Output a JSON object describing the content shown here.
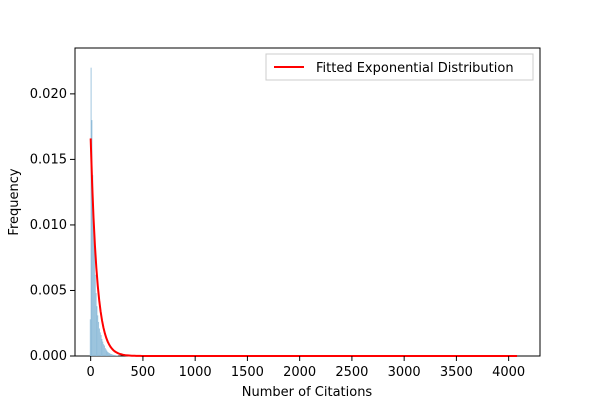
{
  "chart_data": {
    "type": "bar",
    "title": "",
    "xlabel": "Number of Citations",
    "ylabel": "Frequency",
    "xlim": [
      -150,
      4300
    ],
    "ylim": [
      0,
      0.0235
    ],
    "xticks": [
      0,
      500,
      1000,
      1500,
      2000,
      2500,
      3000,
      3500,
      4000
    ],
    "xtick_labels": [
      "0",
      "500",
      "1000",
      "1500",
      "2000",
      "2500",
      "3000",
      "3500",
      "4000"
    ],
    "yticks": [
      0,
      0.005,
      0.01,
      0.015,
      0.02
    ],
    "ytick_labels": [
      "0.000",
      "0.005",
      "0.010",
      "0.015",
      "0.020"
    ],
    "grid": false,
    "legend_position": "top-right",
    "histogram": {
      "series_color": "#8fbcd9",
      "bin_width": 8,
      "bins": [
        {
          "x": -8,
          "y": 0.0028
        },
        {
          "x": 0,
          "y": 0.022
        },
        {
          "x": 8,
          "y": 0.018
        },
        {
          "x": 16,
          "y": 0.0138
        },
        {
          "x": 24,
          "y": 0.0112
        },
        {
          "x": 32,
          "y": 0.0088
        },
        {
          "x": 40,
          "y": 0.0062
        },
        {
          "x": 48,
          "y": 0.0048
        },
        {
          "x": 56,
          "y": 0.0038
        },
        {
          "x": 64,
          "y": 0.0031
        },
        {
          "x": 72,
          "y": 0.0026
        },
        {
          "x": 80,
          "y": 0.0021
        },
        {
          "x": 88,
          "y": 0.0018
        },
        {
          "x": 96,
          "y": 0.0016
        },
        {
          "x": 104,
          "y": 0.0013
        },
        {
          "x": 112,
          "y": 0.0011
        },
        {
          "x": 120,
          "y": 0.0009
        },
        {
          "x": 128,
          "y": 0.0008
        },
        {
          "x": 136,
          "y": 0.0006
        },
        {
          "x": 144,
          "y": 0.0005
        },
        {
          "x": 152,
          "y": 0.0004
        },
        {
          "x": 160,
          "y": 0.0003
        },
        {
          "x": 168,
          "y": 0.00026
        },
        {
          "x": 176,
          "y": 0.00022
        },
        {
          "x": 184,
          "y": 0.00018
        },
        {
          "x": 192,
          "y": 0.00015
        },
        {
          "x": 200,
          "y": 0.00012
        },
        {
          "x": 208,
          "y": 0.0001
        },
        {
          "x": 216,
          "y": 8e-05
        },
        {
          "x": 224,
          "y": 7e-05
        },
        {
          "x": 232,
          "y": 6e-05
        },
        {
          "x": 240,
          "y": 5e-05
        },
        {
          "x": 248,
          "y": 4e-05
        },
        {
          "x": 256,
          "y": 3e-05
        }
      ]
    },
    "fit": {
      "name": "Fitted Exponential Distribution",
      "color": "#ff0000",
      "x_start": 0,
      "x_end": 4080,
      "peak": 0.0166,
      "scale": 60
    }
  }
}
